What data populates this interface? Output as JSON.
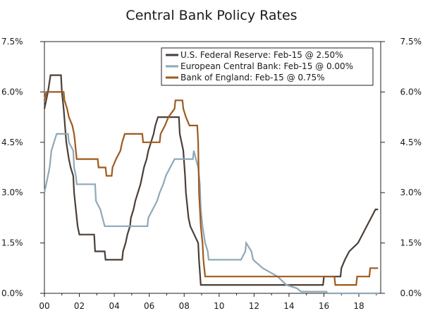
{
  "chart_data": {
    "type": "line",
    "title": "Central Bank Policy Rates",
    "xlabel": "",
    "ylabel": "",
    "xlim": [
      2000.0,
      2019.25
    ],
    "ylim": [
      0,
      7.5
    ],
    "x_ticks": [
      {
        "value": 2000,
        "label": "00"
      },
      {
        "value": 2002,
        "label": "02"
      },
      {
        "value": 2004,
        "label": "04"
      },
      {
        "value": 2006,
        "label": "06"
      },
      {
        "value": 2008,
        "label": "08"
      },
      {
        "value": 2010,
        "label": "10"
      },
      {
        "value": 2012,
        "label": "12"
      },
      {
        "value": 2014,
        "label": "14"
      },
      {
        "value": 2016,
        "label": "16"
      },
      {
        "value": 2018,
        "label": "18"
      }
    ],
    "y_ticks": [
      {
        "value": 0,
        "label": "0.0%"
      },
      {
        "value": 1.5,
        "label": "1.5%"
      },
      {
        "value": 3.0,
        "label": "3.0%"
      },
      {
        "value": 4.5,
        "label": "4.5%"
      },
      {
        "value": 6.0,
        "label": "6.0%"
      },
      {
        "value": 7.5,
        "label": "7.5%"
      }
    ],
    "grid": false,
    "legend_position": "top-right",
    "series": [
      {
        "name": "U.S. Federal Reserve: Feb-15 @ 2.50%",
        "color": "#4a3f38",
        "points": [
          [
            2000.0,
            5.5
          ],
          [
            2000.1,
            5.75
          ],
          [
            2000.2,
            6.0
          ],
          [
            2000.35,
            6.5
          ],
          [
            2000.95,
            6.5
          ],
          [
            2001.0,
            6.0
          ],
          [
            2001.1,
            5.5
          ],
          [
            2001.25,
            4.5
          ],
          [
            2001.4,
            4.0
          ],
          [
            2001.5,
            3.75
          ],
          [
            2001.65,
            3.5
          ],
          [
            2001.7,
            3.0
          ],
          [
            2001.8,
            2.5
          ],
          [
            2001.9,
            2.0
          ],
          [
            2002.0,
            1.75
          ],
          [
            2002.85,
            1.75
          ],
          [
            2002.9,
            1.25
          ],
          [
            2003.45,
            1.25
          ],
          [
            2003.5,
            1.0
          ],
          [
            2004.45,
            1.0
          ],
          [
            2004.5,
            1.25
          ],
          [
            2004.65,
            1.5
          ],
          [
            2004.75,
            1.75
          ],
          [
            2004.9,
            2.0
          ],
          [
            2004.95,
            2.25
          ],
          [
            2005.1,
            2.5
          ],
          [
            2005.2,
            2.75
          ],
          [
            2005.35,
            3.0
          ],
          [
            2005.5,
            3.25
          ],
          [
            2005.6,
            3.5
          ],
          [
            2005.7,
            3.75
          ],
          [
            2005.85,
            4.0
          ],
          [
            2005.95,
            4.25
          ],
          [
            2006.1,
            4.5
          ],
          [
            2006.25,
            4.75
          ],
          [
            2006.35,
            5.0
          ],
          [
            2006.5,
            5.25
          ],
          [
            2007.7,
            5.25
          ],
          [
            2007.75,
            4.75
          ],
          [
            2007.85,
            4.5
          ],
          [
            2007.95,
            4.25
          ],
          [
            2008.05,
            3.5
          ],
          [
            2008.1,
            3.0
          ],
          [
            2008.25,
            2.25
          ],
          [
            2008.35,
            2.0
          ],
          [
            2008.8,
            1.5
          ],
          [
            2008.85,
            1.0
          ],
          [
            2008.95,
            0.25
          ],
          [
            2015.95,
            0.25
          ],
          [
            2016.0,
            0.5
          ],
          [
            2016.95,
            0.5
          ],
          [
            2017.0,
            0.75
          ],
          [
            2017.2,
            1.0
          ],
          [
            2017.45,
            1.25
          ],
          [
            2017.95,
            1.5
          ],
          [
            2018.2,
            1.75
          ],
          [
            2018.45,
            2.0
          ],
          [
            2018.7,
            2.25
          ],
          [
            2018.95,
            2.5
          ],
          [
            2019.1,
            2.5
          ]
        ]
      },
      {
        "name": "European Central Bank: Feb-15 @ 0.00%",
        "color": "#8fa8b6",
        "points": [
          [
            2000.0,
            3.0
          ],
          [
            2000.1,
            3.25
          ],
          [
            2000.2,
            3.5
          ],
          [
            2000.3,
            3.75
          ],
          [
            2000.4,
            4.25
          ],
          [
            2000.55,
            4.5
          ],
          [
            2000.7,
            4.75
          ],
          [
            2001.35,
            4.75
          ],
          [
            2001.4,
            4.5
          ],
          [
            2001.65,
            4.25
          ],
          [
            2001.7,
            3.75
          ],
          [
            2001.8,
            3.5
          ],
          [
            2001.85,
            3.25
          ],
          [
            2002.9,
            3.25
          ],
          [
            2002.95,
            2.75
          ],
          [
            2003.2,
            2.5
          ],
          [
            2003.45,
            2.0
          ],
          [
            2005.9,
            2.0
          ],
          [
            2005.95,
            2.25
          ],
          [
            2006.2,
            2.5
          ],
          [
            2006.45,
            2.75
          ],
          [
            2006.6,
            3.0
          ],
          [
            2006.8,
            3.25
          ],
          [
            2006.95,
            3.5
          ],
          [
            2007.2,
            3.75
          ],
          [
            2007.45,
            4.0
          ],
          [
            2008.5,
            4.0
          ],
          [
            2008.55,
            4.25
          ],
          [
            2008.8,
            3.75
          ],
          [
            2008.9,
            3.25
          ],
          [
            2008.95,
            2.5
          ],
          [
            2009.05,
            2.0
          ],
          [
            2009.2,
            1.5
          ],
          [
            2009.35,
            1.25
          ],
          [
            2009.4,
            1.0
          ],
          [
            2011.25,
            1.0
          ],
          [
            2011.5,
            1.25
          ],
          [
            2011.55,
            1.5
          ],
          [
            2011.85,
            1.25
          ],
          [
            2011.95,
            1.0
          ],
          [
            2012.5,
            0.75
          ],
          [
            2013.35,
            0.5
          ],
          [
            2013.85,
            0.25
          ],
          [
            2014.45,
            0.15
          ],
          [
            2014.7,
            0.05
          ],
          [
            2016.15,
            0.05
          ],
          [
            2016.2,
            0.0
          ],
          [
            2019.1,
            0.0
          ]
        ]
      },
      {
        "name": "Bank of England: Feb-15 @ 0.75%",
        "color": "#9e5a1e",
        "points": [
          [
            2000.0,
            5.75
          ],
          [
            2000.1,
            6.0
          ],
          [
            2001.1,
            6.0
          ],
          [
            2001.15,
            5.75
          ],
          [
            2001.3,
            5.5
          ],
          [
            2001.4,
            5.25
          ],
          [
            2001.6,
            5.0
          ],
          [
            2001.7,
            4.75
          ],
          [
            2001.75,
            4.5
          ],
          [
            2001.85,
            4.0
          ],
          [
            2003.05,
            4.0
          ],
          [
            2003.1,
            3.75
          ],
          [
            2003.5,
            3.75
          ],
          [
            2003.55,
            3.5
          ],
          [
            2003.85,
            3.5
          ],
          [
            2003.9,
            3.75
          ],
          [
            2004.1,
            4.0
          ],
          [
            2004.35,
            4.25
          ],
          [
            2004.45,
            4.5
          ],
          [
            2004.6,
            4.75
          ],
          [
            2005.6,
            4.75
          ],
          [
            2005.65,
            4.5
          ],
          [
            2006.6,
            4.5
          ],
          [
            2006.65,
            4.75
          ],
          [
            2006.9,
            5.0
          ],
          [
            2007.1,
            5.25
          ],
          [
            2007.45,
            5.5
          ],
          [
            2007.5,
            5.75
          ],
          [
            2007.9,
            5.75
          ],
          [
            2007.95,
            5.5
          ],
          [
            2008.1,
            5.25
          ],
          [
            2008.3,
            5.0
          ],
          [
            2008.75,
            5.0
          ],
          [
            2008.8,
            4.5
          ],
          [
            2008.85,
            3.0
          ],
          [
            2008.95,
            2.0
          ],
          [
            2009.05,
            1.5
          ],
          [
            2009.1,
            1.0
          ],
          [
            2009.2,
            0.5
          ],
          [
            2016.6,
            0.5
          ],
          [
            2016.65,
            0.25
          ],
          [
            2017.85,
            0.25
          ],
          [
            2017.9,
            0.5
          ],
          [
            2018.6,
            0.5
          ],
          [
            2018.65,
            0.75
          ],
          [
            2019.1,
            0.75
          ]
        ]
      }
    ]
  }
}
